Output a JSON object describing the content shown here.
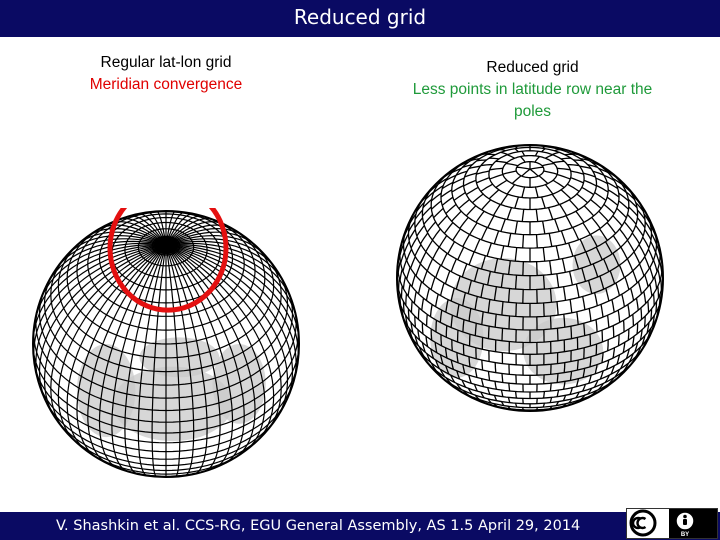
{
  "header": {
    "title": "Reduced grid"
  },
  "left_panel": {
    "caption_line1": "Regular lat-lon grid",
    "caption_line2": "Meridian convergence",
    "globe_icon": "regular-latlon-globe",
    "highlight_color": "#e41010"
  },
  "right_panel": {
    "caption_line1": "Reduced grid",
    "caption_line2": "Less points in latitude row near the",
    "caption_line3": "poles",
    "globe_icon": "reduced-grid-globe"
  },
  "footer": {
    "citation": "V. Shashkin et al. CCS-RG, EGU General Assembly, AS 1.5 April 29, 2014",
    "license_badge": "BY",
    "license_icons": [
      "cc-icon",
      "by-person-icon"
    ]
  },
  "colors": {
    "bar": "#0a0a63",
    "caption_red": "#e00000",
    "caption_green": "#1f9a3a"
  }
}
